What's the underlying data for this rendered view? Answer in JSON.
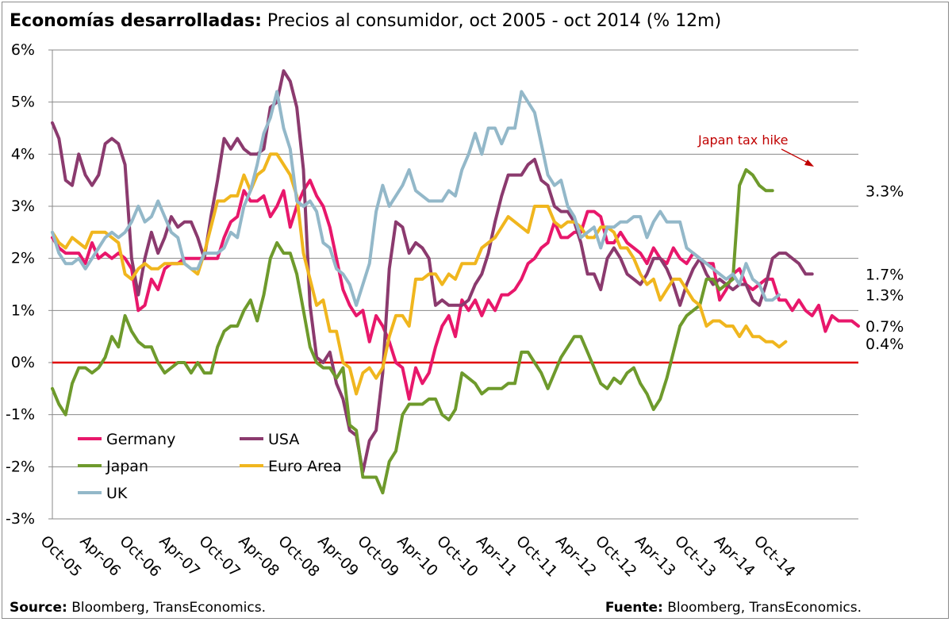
{
  "title_bold": "Economías desarrolladas:",
  "title_rest": "Precios al consumidor, oct 2005 - oct 2014 (% 12m)",
  "footer_left_bold": "Source:",
  "footer_left_rest": "Bloomberg, TransEconomics.",
  "footer_right_bold": "Fuente:",
  "footer_right_rest": "Bloomberg, TransEconomics.",
  "annotation": "Japan tax hike",
  "chart_data": {
    "type": "line",
    "ylim": [
      -3,
      6
    ],
    "ytick_labels": [
      "-3%",
      "-2%",
      "-1%",
      "0%",
      "1%",
      "2%",
      "3%",
      "4%",
      "5%",
      "6%"
    ],
    "xtick_labels": [
      "Oct-05",
      "Apr-06",
      "Oct-06",
      "Apr-07",
      "Oct-07",
      "Apr-08",
      "Oct-08",
      "Apr-09",
      "Oct-09",
      "Apr-10",
      "Oct-10",
      "Apr-11",
      "Oct-11",
      "Apr-12",
      "Oct-12",
      "Apr-13",
      "Oct-13",
      "Apr-14",
      "Oct-14"
    ],
    "grid": true,
    "legend": "bottom-left",
    "reference_line": {
      "y": 0,
      "color": "#e00000"
    },
    "series": [
      {
        "name": "Germany",
        "color": "#e8176b",
        "end_label": "0.7%",
        "values": [
          2.4,
          2.2,
          2.1,
          2.1,
          2.1,
          1.9,
          2.3,
          2.0,
          2.1,
          2.0,
          2.1,
          2.0,
          1.8,
          1.0,
          1.1,
          1.6,
          1.4,
          1.8,
          1.9,
          1.9,
          2.0,
          2.0,
          2.0,
          2.0,
          2.0,
          2.0,
          2.4,
          2.7,
          2.8,
          3.3,
          3.1,
          3.1,
          3.2,
          2.8,
          3.0,
          3.3,
          2.6,
          3.0,
          3.3,
          3.5,
          3.2,
          3.0,
          2.6,
          2.0,
          1.4,
          1.1,
          0.9,
          1.0,
          0.4,
          0.9,
          0.7,
          0.4,
          0.0,
          -0.1,
          -0.7,
          -0.1,
          -0.4,
          -0.2,
          0.3,
          0.7,
          0.9,
          0.5,
          1.2,
          1.0,
          1.2,
          0.9,
          1.2,
          1.0,
          1.3,
          1.3,
          1.4,
          1.6,
          1.9,
          2.0,
          2.2,
          2.3,
          2.7,
          2.4,
          2.4,
          2.5,
          2.5,
          2.9,
          2.9,
          2.8,
          2.3,
          2.3,
          2.5,
          2.3,
          2.2,
          2.1,
          1.9,
          2.2,
          2.0,
          1.9,
          2.2,
          2.0,
          1.9,
          2.1,
          2.0,
          1.9,
          1.9,
          1.2,
          1.4,
          1.7,
          1.8,
          1.5,
          1.4,
          1.5,
          1.6,
          1.6,
          1.2,
          1.2,
          1.0,
          1.2,
          1.0,
          0.9,
          1.1,
          0.6,
          0.9,
          0.8,
          0.8,
          0.8,
          0.7
        ]
      },
      {
        "name": "USA",
        "color": "#8b3a6e",
        "end_label": "1.7%",
        "values": [
          4.6,
          4.3,
          3.5,
          3.4,
          4.0,
          3.6,
          3.4,
          3.6,
          4.2,
          4.3,
          4.2,
          3.8,
          2.0,
          1.3,
          2.0,
          2.5,
          2.1,
          2.4,
          2.8,
          2.6,
          2.7,
          2.7,
          2.4,
          2.0,
          2.8,
          3.5,
          4.3,
          4.1,
          4.3,
          4.1,
          4.0,
          4.0,
          4.1,
          4.9,
          5.0,
          5.6,
          5.4,
          4.9,
          3.7,
          1.1,
          0.1,
          0.0,
          0.2,
          -0.4,
          -0.7,
          -1.3,
          -1.4,
          -2.1,
          -1.5,
          -1.3,
          -0.2,
          1.8,
          2.7,
          2.6,
          2.1,
          2.3,
          2.2,
          2.0,
          1.1,
          1.2,
          1.1,
          1.1,
          1.1,
          1.2,
          1.5,
          1.7,
          2.1,
          2.7,
          3.2,
          3.6,
          3.6,
          3.6,
          3.8,
          3.9,
          3.5,
          3.4,
          3.0,
          2.9,
          2.9,
          2.7,
          2.3,
          1.7,
          1.7,
          1.4,
          2.0,
          2.2,
          2.0,
          1.7,
          1.6,
          1.5,
          1.7,
          2.0,
          2.0,
          1.8,
          1.5,
          1.1,
          1.5,
          1.8,
          2.0,
          1.7,
          1.5,
          1.6,
          1.5,
          1.4,
          1.5,
          1.5,
          1.2,
          1.1,
          1.5,
          2.0,
          2.1,
          2.1,
          2.0,
          1.9,
          1.7,
          1.7
        ]
      },
      {
        "name": "Japan",
        "color": "#6e9a2c",
        "end_label": "3.3%",
        "values": [
          -0.5,
          -0.8,
          -1.0,
          -0.4,
          -0.1,
          -0.1,
          -0.2,
          -0.1,
          0.1,
          0.5,
          0.3,
          0.9,
          0.6,
          0.4,
          0.3,
          0.3,
          0.0,
          -0.2,
          -0.1,
          0.0,
          0.0,
          -0.2,
          0.0,
          -0.2,
          -0.2,
          0.3,
          0.6,
          0.7,
          0.7,
          1.0,
          1.2,
          0.8,
          1.3,
          2.0,
          2.3,
          2.1,
          2.1,
          1.7,
          1.0,
          0.3,
          0.0,
          -0.1,
          -0.1,
          -0.3,
          -0.1,
          -1.2,
          -1.3,
          -2.2,
          -2.2,
          -2.2,
          -2.5,
          -1.9,
          -1.7,
          -1.0,
          -0.8,
          -0.8,
          -0.8,
          -0.7,
          -0.7,
          -1.0,
          -1.1,
          -0.9,
          -0.2,
          -0.3,
          -0.4,
          -0.6,
          -0.5,
          -0.5,
          -0.5,
          -0.4,
          -0.4,
          0.2,
          0.2,
          0.0,
          -0.2,
          -0.5,
          -0.2,
          0.1,
          0.3,
          0.5,
          0.5,
          0.2,
          -0.1,
          -0.4,
          -0.5,
          -0.3,
          -0.4,
          -0.2,
          -0.1,
          -0.4,
          -0.6,
          -0.9,
          -0.7,
          -0.3,
          0.2,
          0.7,
          0.9,
          1.0,
          1.1,
          1.6,
          1.6,
          1.4,
          1.5,
          1.6,
          3.4,
          3.7,
          3.6,
          3.4,
          3.3,
          3.3
        ]
      },
      {
        "name": "Euro Area",
        "color": "#f0b61e",
        "end_label": "0.4%",
        "values": [
          2.5,
          2.3,
          2.2,
          2.4,
          2.3,
          2.2,
          2.5,
          2.5,
          2.5,
          2.4,
          2.3,
          1.7,
          1.6,
          1.8,
          1.9,
          1.8,
          1.8,
          1.9,
          1.9,
          1.9,
          1.9,
          1.8,
          1.7,
          2.1,
          2.6,
          3.1,
          3.1,
          3.2,
          3.2,
          3.6,
          3.3,
          3.6,
          3.7,
          4.0,
          4.0,
          3.8,
          3.6,
          3.2,
          2.1,
          1.6,
          1.1,
          1.2,
          0.6,
          0.6,
          0.0,
          -0.1,
          -0.6,
          -0.2,
          -0.1,
          -0.3,
          -0.1,
          0.5,
          0.9,
          0.9,
          0.7,
          1.6,
          1.6,
          1.7,
          1.7,
          1.5,
          1.7,
          1.6,
          1.9,
          1.9,
          1.9,
          2.2,
          2.3,
          2.4,
          2.6,
          2.8,
          2.7,
          2.6,
          2.5,
          3.0,
          3.0,
          3.0,
          2.7,
          2.6,
          2.7,
          2.7,
          2.6,
          2.4,
          2.4,
          2.6,
          2.6,
          2.5,
          2.2,
          2.2,
          2.0,
          1.7,
          1.5,
          1.6,
          1.2,
          1.4,
          1.6,
          1.6,
          1.4,
          1.2,
          1.1,
          0.7,
          0.8,
          0.8,
          0.7,
          0.7,
          0.5,
          0.7,
          0.5,
          0.5,
          0.4,
          0.4,
          0.3,
          0.4
        ]
      },
      {
        "name": "UK",
        "color": "#93b8c9",
        "end_label": "1.3%",
        "values": [
          2.5,
          2.1,
          1.9,
          1.9,
          2.0,
          1.8,
          2.0,
          2.2,
          2.4,
          2.5,
          2.4,
          2.5,
          2.7,
          3.0,
          2.7,
          2.8,
          3.1,
          2.8,
          2.5,
          2.4,
          1.9,
          1.8,
          1.8,
          2.1,
          2.1,
          2.1,
          2.2,
          2.5,
          2.4,
          3.0,
          3.3,
          3.8,
          4.4,
          4.7,
          5.2,
          4.5,
          4.1,
          3.1,
          3.0,
          3.1,
          2.9,
          2.3,
          2.2,
          1.8,
          1.7,
          1.5,
          1.1,
          1.5,
          1.9,
          2.9,
          3.4,
          3.0,
          3.2,
          3.4,
          3.7,
          3.3,
          3.2,
          3.1,
          3.1,
          3.1,
          3.3,
          3.2,
          3.7,
          4.0,
          4.4,
          4.0,
          4.5,
          4.5,
          4.2,
          4.5,
          4.5,
          5.2,
          5.0,
          4.8,
          4.2,
          3.6,
          3.4,
          3.5,
          3.0,
          2.8,
          2.4,
          2.5,
          2.6,
          2.2,
          2.6,
          2.6,
          2.7,
          2.7,
          2.8,
          2.8,
          2.4,
          2.7,
          2.9,
          2.7,
          2.7,
          2.7,
          2.2,
          2.1,
          2.0,
          1.9,
          1.8,
          1.7,
          1.6,
          1.7,
          1.5,
          1.9,
          1.6,
          1.5,
          1.2,
          1.2,
          1.3
        ]
      }
    ]
  }
}
